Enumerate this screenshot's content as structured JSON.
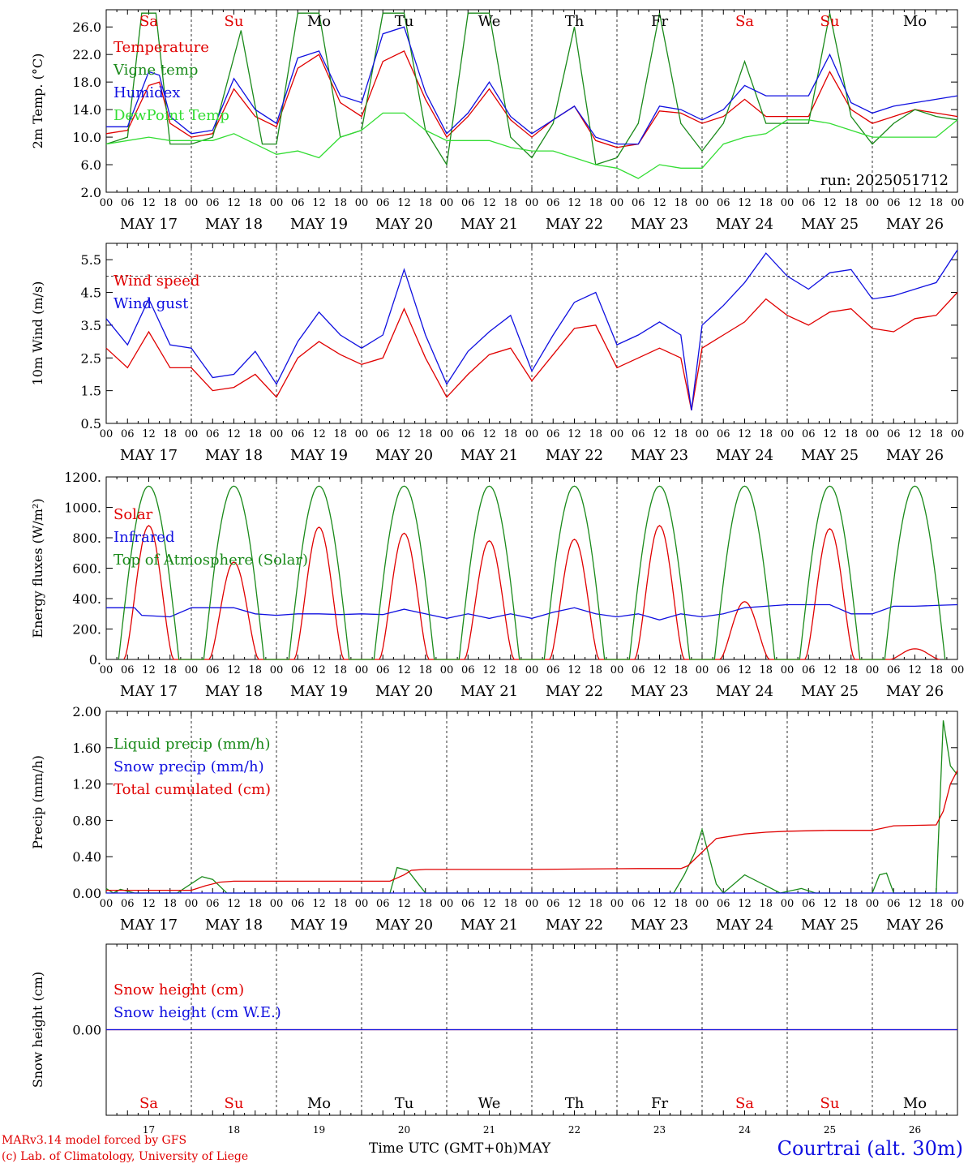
{
  "run_label": "run: 2025051712",
  "x_axis": {
    "start_day": 17,
    "n_days": 10,
    "hour_ticks": [
      "00",
      "06",
      "12",
      "18"
    ],
    "date_labels": [
      "MAY 17",
      "MAY 18",
      "MAY 19",
      "MAY 20",
      "MAY 21",
      "MAY 22",
      "MAY 23",
      "MAY 24",
      "MAY 25",
      "MAY 26"
    ],
    "weekdays": [
      "Sa",
      "Su",
      "Mo",
      "Tu",
      "We",
      "Th",
      "Fr",
      "Sa",
      "Su",
      "Mo"
    ],
    "weekday_colors": [
      "#e00000",
      "#e00000",
      "#000000",
      "#000000",
      "#000000",
      "#000000",
      "#000000",
      "#e00000",
      "#e00000",
      "#000000"
    ],
    "day_numbers": [
      "17",
      "18",
      "19",
      "20",
      "21",
      "22",
      "23",
      "24",
      "25",
      "26"
    ],
    "xlabel": "Time UTC (GMT+0h)",
    "month": "MAY"
  },
  "footer": {
    "model_line": "MARv3.14 model forced by GFS",
    "lab_line": "(c) Lab. of Climatology, University of Liege",
    "station": "Courtrai (alt. 30m)"
  },
  "colors": {
    "red": "#e00000",
    "green_dark": "#1a8a1a",
    "green_light": "#33dd33",
    "blue": "#1010e0"
  },
  "chart_data": [
    {
      "type": "line",
      "id": "temp",
      "ylabel": "2m Temp. (°C)",
      "ylim": [
        2,
        28.5
      ],
      "yticks": [
        "26.0",
        "22.0",
        "18.0",
        "14.0",
        "10.0",
        "6.0",
        "2.0"
      ],
      "ytick_values": [
        26,
        22,
        18,
        14,
        10,
        6,
        2
      ],
      "series": [
        {
          "name": "Temperature",
          "color": "#e00000",
          "x": [
            0,
            6,
            12,
            15,
            18,
            24,
            30,
            36,
            42,
            48,
            54,
            60,
            66,
            72,
            78,
            84,
            90,
            96,
            102,
            108,
            114,
            120,
            126,
            132,
            138,
            144,
            150,
            156,
            162,
            168,
            174,
            180,
            186,
            192,
            198,
            204,
            210,
            216,
            222,
            228,
            234,
            240
          ],
          "values": [
            10.5,
            11.0,
            17.5,
            18.0,
            12.0,
            10.0,
            10.5,
            17.0,
            13.0,
            11.5,
            20.0,
            22.0,
            15.0,
            13.0,
            21.0,
            22.5,
            15.5,
            10.0,
            13.0,
            17.0,
            12.5,
            10.0,
            12.5,
            14.5,
            9.5,
            8.5,
            9.0,
            13.8,
            13.5,
            12.0,
            13.0,
            15.5,
            13.0,
            13.0,
            13.0,
            19.5,
            14.0,
            12.0,
            13.0,
            14.0,
            13.5,
            13.0
          ]
        },
        {
          "name": "Vigne temp",
          "color": "#1a8a1a",
          "x": [
            0,
            6,
            10,
            14,
            18,
            24,
            30,
            38,
            44,
            48,
            54,
            60,
            66,
            72,
            78,
            84,
            90,
            96,
            102,
            108,
            114,
            120,
            126,
            132,
            138,
            144,
            150,
            156,
            162,
            168,
            174,
            180,
            186,
            192,
            198,
            204,
            210,
            216,
            222,
            228,
            234,
            240
          ],
          "values": [
            9.0,
            10.0,
            28.0,
            28.0,
            9.0,
            9.0,
            10.0,
            25.5,
            9.0,
            9.0,
            28.0,
            28.0,
            10.0,
            11.0,
            28.0,
            28.0,
            11.0,
            6.0,
            28.0,
            28.0,
            10.0,
            7.0,
            12.0,
            26.0,
            6.0,
            7.0,
            12.0,
            28.0,
            12.0,
            8.0,
            12.0,
            21.0,
            12.0,
            12.0,
            12.0,
            28.0,
            13.0,
            9.0,
            12.0,
            14.0,
            13.0,
            12.5
          ]
        },
        {
          "name": "Humidex",
          "color": "#1010e0",
          "x": [
            0,
            6,
            12,
            15,
            18,
            24,
            30,
            36,
            42,
            48,
            54,
            60,
            66,
            72,
            78,
            84,
            90,
            96,
            102,
            108,
            114,
            120,
            126,
            132,
            138,
            144,
            150,
            156,
            162,
            168,
            174,
            180,
            186,
            192,
            198,
            204,
            210,
            216,
            222,
            228,
            234,
            240
          ],
          "values": [
            11.5,
            11.5,
            19.5,
            19.0,
            13.0,
            10.5,
            11.0,
            18.5,
            14.0,
            12.0,
            21.5,
            22.5,
            16.0,
            15.0,
            25.0,
            26.0,
            16.5,
            10.5,
            13.5,
            18.0,
            13.0,
            10.5,
            12.5,
            14.5,
            10.0,
            9.0,
            9.0,
            14.5,
            14.0,
            12.5,
            14.0,
            17.5,
            16.0,
            16.0,
            16.0,
            22.0,
            15.0,
            13.5,
            14.5,
            15.0,
            15.5,
            16.0
          ]
        },
        {
          "name": "DewPoint Temp",
          "color": "#33dd33",
          "x": [
            0,
            6,
            12,
            18,
            24,
            30,
            36,
            42,
            48,
            54,
            60,
            66,
            72,
            78,
            84,
            90,
            96,
            102,
            108,
            114,
            120,
            126,
            132,
            138,
            144,
            150,
            156,
            162,
            168,
            174,
            180,
            186,
            192,
            198,
            204,
            210,
            216,
            222,
            228,
            234,
            240
          ],
          "values": [
            9.0,
            9.5,
            10.0,
            9.5,
            9.5,
            9.5,
            10.5,
            9.0,
            7.5,
            8.0,
            7.0,
            10.0,
            11.0,
            13.5,
            13.5,
            11.0,
            9.5,
            9.5,
            9.5,
            8.5,
            8.0,
            8.0,
            7.0,
            6.0,
            5.5,
            4.0,
            6.0,
            5.5,
            5.5,
            9.0,
            10.0,
            10.5,
            12.5,
            12.5,
            12.0,
            11.0,
            10.0,
            10.0,
            10.0,
            10.0,
            12.5
          ]
        }
      ]
    },
    {
      "type": "line",
      "id": "wind",
      "ylabel": "10m Wind (m/s)",
      "ylim": [
        0.5,
        6.0
      ],
      "yticks": [
        "5.5",
        "4.5",
        "3.5",
        "2.5",
        "1.5",
        "0.5"
      ],
      "ytick_values": [
        5.5,
        4.5,
        3.5,
        2.5,
        1.5,
        0.5
      ],
      "ref_line": 5.0,
      "series": [
        {
          "name": "Wind speed",
          "color": "#e00000",
          "x": [
            0,
            6,
            12,
            18,
            24,
            30,
            36,
            42,
            48,
            54,
            60,
            66,
            72,
            78,
            84,
            90,
            96,
            102,
            108,
            114,
            120,
            126,
            132,
            138,
            144,
            150,
            156,
            162,
            165,
            168,
            174,
            180,
            186,
            192,
            198,
            204,
            210,
            216,
            222,
            228,
            234,
            240
          ],
          "values": [
            2.8,
            2.2,
            3.3,
            2.2,
            2.2,
            1.5,
            1.6,
            2.0,
            1.3,
            2.5,
            3.0,
            2.6,
            2.3,
            2.5,
            4.0,
            2.5,
            1.3,
            2.0,
            2.6,
            2.8,
            1.8,
            2.6,
            3.4,
            3.5,
            2.2,
            2.5,
            2.8,
            2.5,
            0.9,
            2.8,
            3.2,
            3.6,
            4.3,
            3.8,
            3.5,
            3.9,
            4.0,
            3.4,
            3.3,
            3.7,
            3.8,
            4.5
          ]
        },
        {
          "name": "Wind gust",
          "color": "#1010e0",
          "x": [
            0,
            6,
            12,
            18,
            24,
            30,
            36,
            42,
            48,
            54,
            60,
            66,
            72,
            78,
            84,
            90,
            96,
            102,
            108,
            114,
            120,
            126,
            132,
            138,
            144,
            150,
            156,
            162,
            165,
            168,
            174,
            180,
            186,
            192,
            198,
            204,
            210,
            216,
            222,
            228,
            234,
            240
          ],
          "values": [
            3.7,
            2.9,
            4.3,
            2.9,
            2.8,
            1.9,
            2.0,
            2.7,
            1.7,
            3.0,
            3.9,
            3.2,
            2.8,
            3.2,
            5.2,
            3.2,
            1.7,
            2.7,
            3.3,
            3.8,
            2.1,
            3.2,
            4.2,
            4.5,
            2.9,
            3.2,
            3.6,
            3.2,
            0.9,
            3.5,
            4.1,
            4.8,
            5.7,
            5.0,
            4.6,
            5.1,
            5.2,
            4.3,
            4.4,
            4.6,
            4.8,
            5.8
          ]
        }
      ]
    },
    {
      "type": "line",
      "id": "energy",
      "ylabel": "Energy fluxes (W/m²)",
      "ylim": [
        0,
        1200
      ],
      "yticks": [
        "1200.",
        "1000.",
        "800.",
        "600.",
        "400.",
        "200.",
        "0."
      ],
      "ytick_values": [
        1200,
        1000,
        800,
        600,
        400,
        200,
        0
      ],
      "series": [
        {
          "name": "Solar",
          "color": "#e00000",
          "peaks": [
            880,
            640,
            870,
            830,
            780,
            790,
            880,
            380,
            860,
            70
          ]
        },
        {
          "name": "Infrared",
          "color": "#1010e0",
          "x": [
            0,
            6,
            8,
            10,
            18,
            24,
            30,
            36,
            42,
            48,
            54,
            60,
            66,
            72,
            78,
            84,
            90,
            96,
            102,
            108,
            114,
            120,
            126,
            132,
            138,
            144,
            150,
            156,
            162,
            168,
            174,
            180,
            186,
            192,
            198,
            204,
            210,
            216,
            222,
            228,
            234,
            240
          ],
          "values": [
            340,
            340,
            340,
            290,
            280,
            340,
            340,
            340,
            300,
            290,
            300,
            300,
            295,
            300,
            295,
            330,
            300,
            270,
            300,
            270,
            300,
            270,
            310,
            340,
            300,
            280,
            300,
            260,
            300,
            280,
            300,
            340,
            350,
            360,
            360,
            360,
            300,
            300,
            350,
            350,
            355,
            360
          ]
        },
        {
          "name": "Top of Atmosphere (Solar)",
          "color": "#1a8a1a",
          "peak": 1140
        }
      ]
    },
    {
      "type": "line",
      "id": "precip",
      "ylabel": "Precip (mm/h)",
      "ylim": [
        0,
        2.0
      ],
      "yticks": [
        "2.00",
        "1.60",
        "1.20",
        "0.80",
        "0.40",
        "0.00"
      ],
      "ytick_values": [
        2.0,
        1.6,
        1.2,
        0.8,
        0.4,
        0.0
      ],
      "series": [
        {
          "name": "Liquid precip (mm/h)",
          "color": "#1a8a1a",
          "x": [
            0,
            2,
            4,
            8,
            20,
            27,
            30,
            34,
            40,
            80,
            82,
            85,
            88,
            90,
            100,
            160,
            163,
            166,
            168,
            172,
            174,
            180,
            190,
            196,
            200,
            216,
            218,
            220,
            222,
            225,
            234,
            236,
            238,
            240
          ],
          "values": [
            0.05,
            0.0,
            0.04,
            0.0,
            0.0,
            0.18,
            0.15,
            0.0,
            0.0,
            0.0,
            0.28,
            0.25,
            0.1,
            0.0,
            0.0,
            0.0,
            0.2,
            0.45,
            0.7,
            0.1,
            0.0,
            0.2,
            0.0,
            0.05,
            0.0,
            0.0,
            0.2,
            0.22,
            0.0,
            0.0,
            0.0,
            1.9,
            1.4,
            1.3
          ]
        },
        {
          "name": "Snow precip (mm/h)",
          "color": "#1010e0",
          "x": [
            0,
            240
          ],
          "values": [
            0,
            0
          ]
        },
        {
          "name": "Total cumulated (cm)",
          "color": "#e00000",
          "x": [
            0,
            24,
            28,
            32,
            36,
            80,
            84,
            86,
            90,
            120,
            150,
            162,
            164,
            168,
            172,
            180,
            186,
            192,
            204,
            216,
            222,
            234,
            236,
            238,
            240
          ],
          "values": [
            0.03,
            0.03,
            0.08,
            0.12,
            0.13,
            0.13,
            0.2,
            0.25,
            0.26,
            0.26,
            0.27,
            0.27,
            0.3,
            0.45,
            0.6,
            0.65,
            0.67,
            0.68,
            0.69,
            0.69,
            0.74,
            0.75,
            0.9,
            1.2,
            1.35
          ]
        }
      ]
    },
    {
      "type": "line",
      "id": "snow",
      "ylabel": "Snow height (cm)",
      "ylim": [
        -1,
        1
      ],
      "yticks": [
        "0.00"
      ],
      "ytick_values": [
        0.0
      ],
      "series": [
        {
          "name": "Snow height (cm)",
          "color": "#e00000",
          "x": [
            0,
            240
          ],
          "values": [
            0,
            0
          ]
        },
        {
          "name": "Snow height (cm W.E.)",
          "color": "#1010e0",
          "x": [
            0,
            240
          ],
          "values": [
            0,
            0
          ]
        }
      ]
    }
  ]
}
